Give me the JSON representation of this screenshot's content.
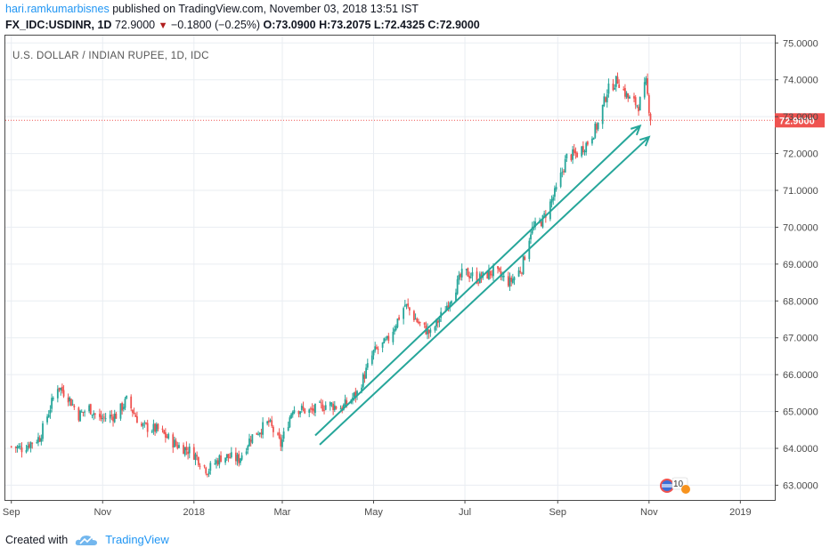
{
  "header": {
    "author": "hari.ramkumarbisnes",
    "published_text": " published on TradingView.com, November 03, 2018 13:51 IST",
    "symbol": "FX_IDC:USDINR, 1D",
    "last": " 72.9000 ",
    "change_arrow": "▼",
    "change": " −0.1800 (−0.25%) ",
    "ohlc": "O:73.0900 H:73.2075 L:72.4325 C:72.9000"
  },
  "footer": {
    "created_with": "Created with",
    "brand": "TradingView"
  },
  "chart_data": {
    "type": "candlestick",
    "title": "U.S. DOLLAR / INDIAN RUPEE, 1D, IDC",
    "ylim": [
      62.6,
      75.2
    ],
    "y_ticks": [
      "75.0000",
      "74.0000",
      "73.0000",
      "72.0000",
      "71.0000",
      "70.0000",
      "69.0000",
      "68.0000",
      "67.0000",
      "66.0000",
      "65.0000",
      "64.0000",
      "63.0000"
    ],
    "x_ticks": [
      "Sep",
      "Nov",
      "2018",
      "Mar",
      "May",
      "Jul",
      "Sep",
      "Nov",
      "2019"
    ],
    "last_price_label": "72.9000",
    "last_price": 72.9,
    "anchors": [
      [
        "2017-09-01",
        64.05
      ],
      [
        "2017-09-08",
        64.0
      ],
      [
        "2017-09-20",
        64.3
      ],
      [
        "2017-10-02",
        65.7
      ],
      [
        "2017-10-09",
        65.4
      ],
      [
        "2017-10-16",
        64.9
      ],
      [
        "2017-10-23",
        65.1
      ],
      [
        "2017-10-30",
        64.8
      ],
      [
        "2017-11-10",
        64.9
      ],
      [
        "2017-11-17",
        65.3
      ],
      [
        "2017-11-27",
        64.6
      ],
      [
        "2017-12-08",
        64.5
      ],
      [
        "2017-12-20",
        64.1
      ],
      [
        "2017-12-31",
        63.9
      ],
      [
        "2018-01-10",
        63.4
      ],
      [
        "2018-01-20",
        63.8
      ],
      [
        "2018-01-31",
        63.7
      ],
      [
        "2018-02-08",
        64.3
      ],
      [
        "2018-02-20",
        64.7
      ],
      [
        "2018-02-28",
        64.1
      ],
      [
        "2018-03-08",
        65.1
      ],
      [
        "2018-03-20",
        65.0
      ],
      [
        "2018-03-31",
        65.2
      ],
      [
        "2018-04-10",
        65.1
      ],
      [
        "2018-04-20",
        65.5
      ],
      [
        "2018-05-01",
        66.6
      ],
      [
        "2018-05-10",
        66.9
      ],
      [
        "2018-05-22",
        67.9
      ],
      [
        "2018-05-31",
        67.4
      ],
      [
        "2018-06-08",
        67.1
      ],
      [
        "2018-06-18",
        67.8
      ],
      [
        "2018-06-30",
        68.8
      ],
      [
        "2018-07-10",
        68.6
      ],
      [
        "2018-07-20",
        68.8
      ],
      [
        "2018-07-31",
        68.5
      ],
      [
        "2018-08-08",
        68.9
      ],
      [
        "2018-08-14",
        69.9
      ],
      [
        "2018-08-22",
        70.2
      ],
      [
        "2018-08-31",
        71.0
      ],
      [
        "2018-09-07",
        71.9
      ],
      [
        "2018-09-14",
        72.0
      ],
      [
        "2018-09-21",
        72.3
      ],
      [
        "2018-09-28",
        72.8
      ],
      [
        "2018-10-04",
        73.7
      ],
      [
        "2018-10-11",
        74.0
      ],
      [
        "2018-10-18",
        73.5
      ],
      [
        "2018-10-25",
        73.3
      ],
      [
        "2018-10-30",
        73.9
      ],
      [
        "2018-11-02",
        72.9
      ]
    ],
    "trend_lines": [
      {
        "from": [
          "2018-03-23",
          64.35
        ],
        "to": [
          "2018-10-26",
          72.75
        ]
      },
      {
        "from": [
          "2018-03-26",
          64.1
        ],
        "to": [
          "2018-11-01",
          72.45
        ]
      }
    ],
    "colors": {
      "up": "#26a69a",
      "down": "#ef5350",
      "trend": "#26a69a",
      "last_line": "#ef5350",
      "grid": "#e9edf2"
    }
  }
}
